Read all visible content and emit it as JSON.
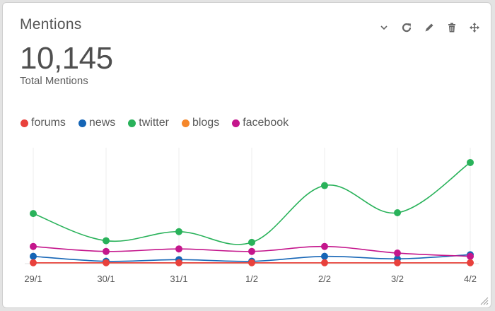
{
  "widget": {
    "title": "Mentions",
    "total_value": "10,145",
    "total_label": "Total Mentions"
  },
  "toolbar": {
    "icons": [
      "chevron-down-icon",
      "refresh-icon",
      "pencil-icon",
      "trash-icon",
      "move-icon"
    ]
  },
  "chart_data": {
    "type": "line",
    "categories": [
      "29/1",
      "30/1",
      "31/1",
      "1/2",
      "2/2",
      "3/2",
      "4/2"
    ],
    "series": [
      {
        "name": "forums",
        "color": "#e8413c",
        "values": [
          1,
          1,
          1,
          1,
          1,
          1,
          1
        ]
      },
      {
        "name": "news",
        "color": "#1565b6",
        "values": [
          40,
          10,
          20,
          10,
          40,
          25,
          50
        ]
      },
      {
        "name": "twitter",
        "color": "#29b25a",
        "values": [
          300,
          135,
          190,
          125,
          470,
          305,
          610
        ]
      },
      {
        "name": "blogs",
        "color": "#f5872b",
        "values": [
          1,
          1,
          1,
          1,
          1,
          1,
          1
        ]
      },
      {
        "name": "facebook",
        "color": "#c4168c",
        "values": [
          100,
          70,
          85,
          70,
          100,
          60,
          40
        ]
      }
    ],
    "ylim": [
      0,
      700
    ],
    "grid": "vertical",
    "legend_position": "top-left"
  }
}
